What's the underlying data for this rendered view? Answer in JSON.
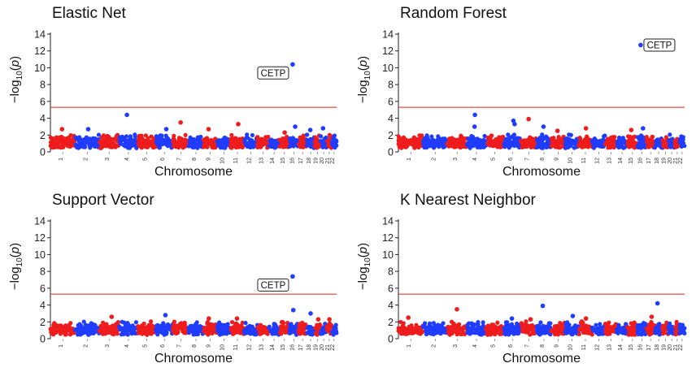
{
  "panels": [
    {
      "title": "Elastic Net",
      "xlabel": "Chromosome",
      "ylabel_prefix": "−log",
      "ylabel_sub": "10",
      "ylabel_var": "p",
      "annotation": "CETP"
    },
    {
      "title": "Random Forest",
      "xlabel": "Chromosome",
      "ylabel_prefix": "−log",
      "ylabel_sub": "10",
      "ylabel_var": "p",
      "annotation": "CETP"
    },
    {
      "title": "Support Vector",
      "xlabel": "Chromosome",
      "ylabel_prefix": "−log",
      "ylabel_sub": "10",
      "ylabel_var": "p",
      "annotation": "CETP"
    },
    {
      "title": "K Nearest Neighbor",
      "xlabel": "Chromosome",
      "ylabel_prefix": "−log",
      "ylabel_sub": "10",
      "ylabel_var": "p",
      "annotation": ""
    }
  ],
  "chart_data": [
    {
      "type": "scatter",
      "title": "Elastic Net",
      "xlabel": "Chromosome",
      "ylabel": "−log10(p)",
      "ylim": [
        0,
        14
      ],
      "yticks": [
        0,
        2,
        4,
        6,
        8,
        10,
        12,
        14
      ],
      "chromosomes": [
        "1",
        "2",
        "3",
        "4",
        "5",
        "6",
        "7",
        "8",
        "9",
        "10",
        "11",
        "12",
        "13",
        "14",
        "15",
        "16",
        "17",
        "18",
        "19",
        "20",
        "21",
        "22"
      ],
      "threshold": 5.3,
      "colors": {
        "odd": "#ee1c1c",
        "even": "#1f3cff",
        "threshold": "#ee1c1c"
      },
      "top_hits": [
        {
          "chromosome": "16",
          "value": 10.4,
          "label": "CETP"
        },
        {
          "chromosome": "4",
          "value": 4.4
        },
        {
          "chromosome": "7",
          "value": 3.5
        },
        {
          "chromosome": "11",
          "value": 3.3
        },
        {
          "chromosome": "16",
          "value": 3.0
        },
        {
          "chromosome": "20",
          "value": 2.8
        },
        {
          "chromosome": "1",
          "value": 2.7
        },
        {
          "chromosome": "2",
          "value": 2.7
        },
        {
          "chromosome": "6",
          "value": 2.7
        },
        {
          "chromosome": "9",
          "value": 2.7
        },
        {
          "chromosome": "18",
          "value": 2.6
        },
        {
          "chromosome": "15",
          "value": 2.3
        }
      ]
    },
    {
      "type": "scatter",
      "title": "Random Forest",
      "xlabel": "Chromosome",
      "ylabel": "−log10(p)",
      "ylim": [
        0,
        14
      ],
      "yticks": [
        0,
        2,
        4,
        6,
        8,
        10,
        12,
        14
      ],
      "chromosomes": [
        "1",
        "2",
        "3",
        "4",
        "5",
        "6",
        "7",
        "8",
        "9",
        "10",
        "11",
        "12",
        "13",
        "14",
        "15",
        "16",
        "17",
        "18",
        "19",
        "20",
        "21",
        "22"
      ],
      "threshold": 5.3,
      "colors": {
        "odd": "#ee1c1c",
        "even": "#1f3cff",
        "threshold": "#ee1c1c"
      },
      "top_hits": [
        {
          "chromosome": "16",
          "value": 12.7,
          "label": "CETP"
        },
        {
          "chromosome": "4",
          "value": 4.4
        },
        {
          "chromosome": "7",
          "value": 3.9
        },
        {
          "chromosome": "6",
          "value": 3.7
        },
        {
          "chromosome": "6",
          "value": 3.3
        },
        {
          "chromosome": "4",
          "value": 3.0
        },
        {
          "chromosome": "8",
          "value": 3.0
        },
        {
          "chromosome": "11",
          "value": 2.8
        },
        {
          "chromosome": "16",
          "value": 2.8
        },
        {
          "chromosome": "15",
          "value": 2.6
        },
        {
          "chromosome": "9",
          "value": 2.5
        }
      ]
    },
    {
      "type": "scatter",
      "title": "Support Vector",
      "xlabel": "Chromosome",
      "ylabel": "−log10(p)",
      "ylim": [
        0,
        14
      ],
      "yticks": [
        0,
        2,
        4,
        6,
        8,
        10,
        12,
        14
      ],
      "chromosomes": [
        "1",
        "2",
        "3",
        "4",
        "5",
        "6",
        "7",
        "8",
        "9",
        "10",
        "11",
        "12",
        "13",
        "14",
        "15",
        "16",
        "17",
        "18",
        "19",
        "20",
        "21",
        "22"
      ],
      "threshold": 5.3,
      "colors": {
        "odd": "#ee1c1c",
        "even": "#1f3cff",
        "threshold": "#ee1c1c"
      },
      "top_hits": [
        {
          "chromosome": "16",
          "value": 7.4,
          "label": "CETP"
        },
        {
          "chromosome": "16",
          "value": 3.4
        },
        {
          "chromosome": "18",
          "value": 3.0
        },
        {
          "chromosome": "6",
          "value": 2.8
        },
        {
          "chromosome": "3",
          "value": 2.6
        },
        {
          "chromosome": "9",
          "value": 2.4
        },
        {
          "chromosome": "11",
          "value": 2.4
        },
        {
          "chromosome": "21",
          "value": 2.3
        },
        {
          "chromosome": "19",
          "value": 2.3
        }
      ]
    },
    {
      "type": "scatter",
      "title": "K Nearest Neighbor",
      "xlabel": "Chromosome",
      "ylabel": "−log10(p)",
      "ylim": [
        0,
        14
      ],
      "yticks": [
        0,
        2,
        4,
        6,
        8,
        10,
        12,
        14
      ],
      "chromosomes": [
        "1",
        "2",
        "3",
        "4",
        "5",
        "6",
        "7",
        "8",
        "9",
        "10",
        "11",
        "12",
        "13",
        "14",
        "15",
        "16",
        "17",
        "18",
        "19",
        "20",
        "21",
        "22"
      ],
      "threshold": 5.3,
      "colors": {
        "odd": "#ee1c1c",
        "even": "#1f3cff",
        "threshold": "#ee1c1c"
      },
      "top_hits": [
        {
          "chromosome": "18",
          "value": 4.2
        },
        {
          "chromosome": "8",
          "value": 3.9
        },
        {
          "chromosome": "3",
          "value": 3.5
        },
        {
          "chromosome": "10",
          "value": 2.7
        },
        {
          "chromosome": "17",
          "value": 2.6
        },
        {
          "chromosome": "1",
          "value": 2.5
        },
        {
          "chromosome": "6",
          "value": 2.4
        },
        {
          "chromosome": "11",
          "value": 2.4
        },
        {
          "chromosome": "7",
          "value": 2.3
        }
      ]
    }
  ]
}
